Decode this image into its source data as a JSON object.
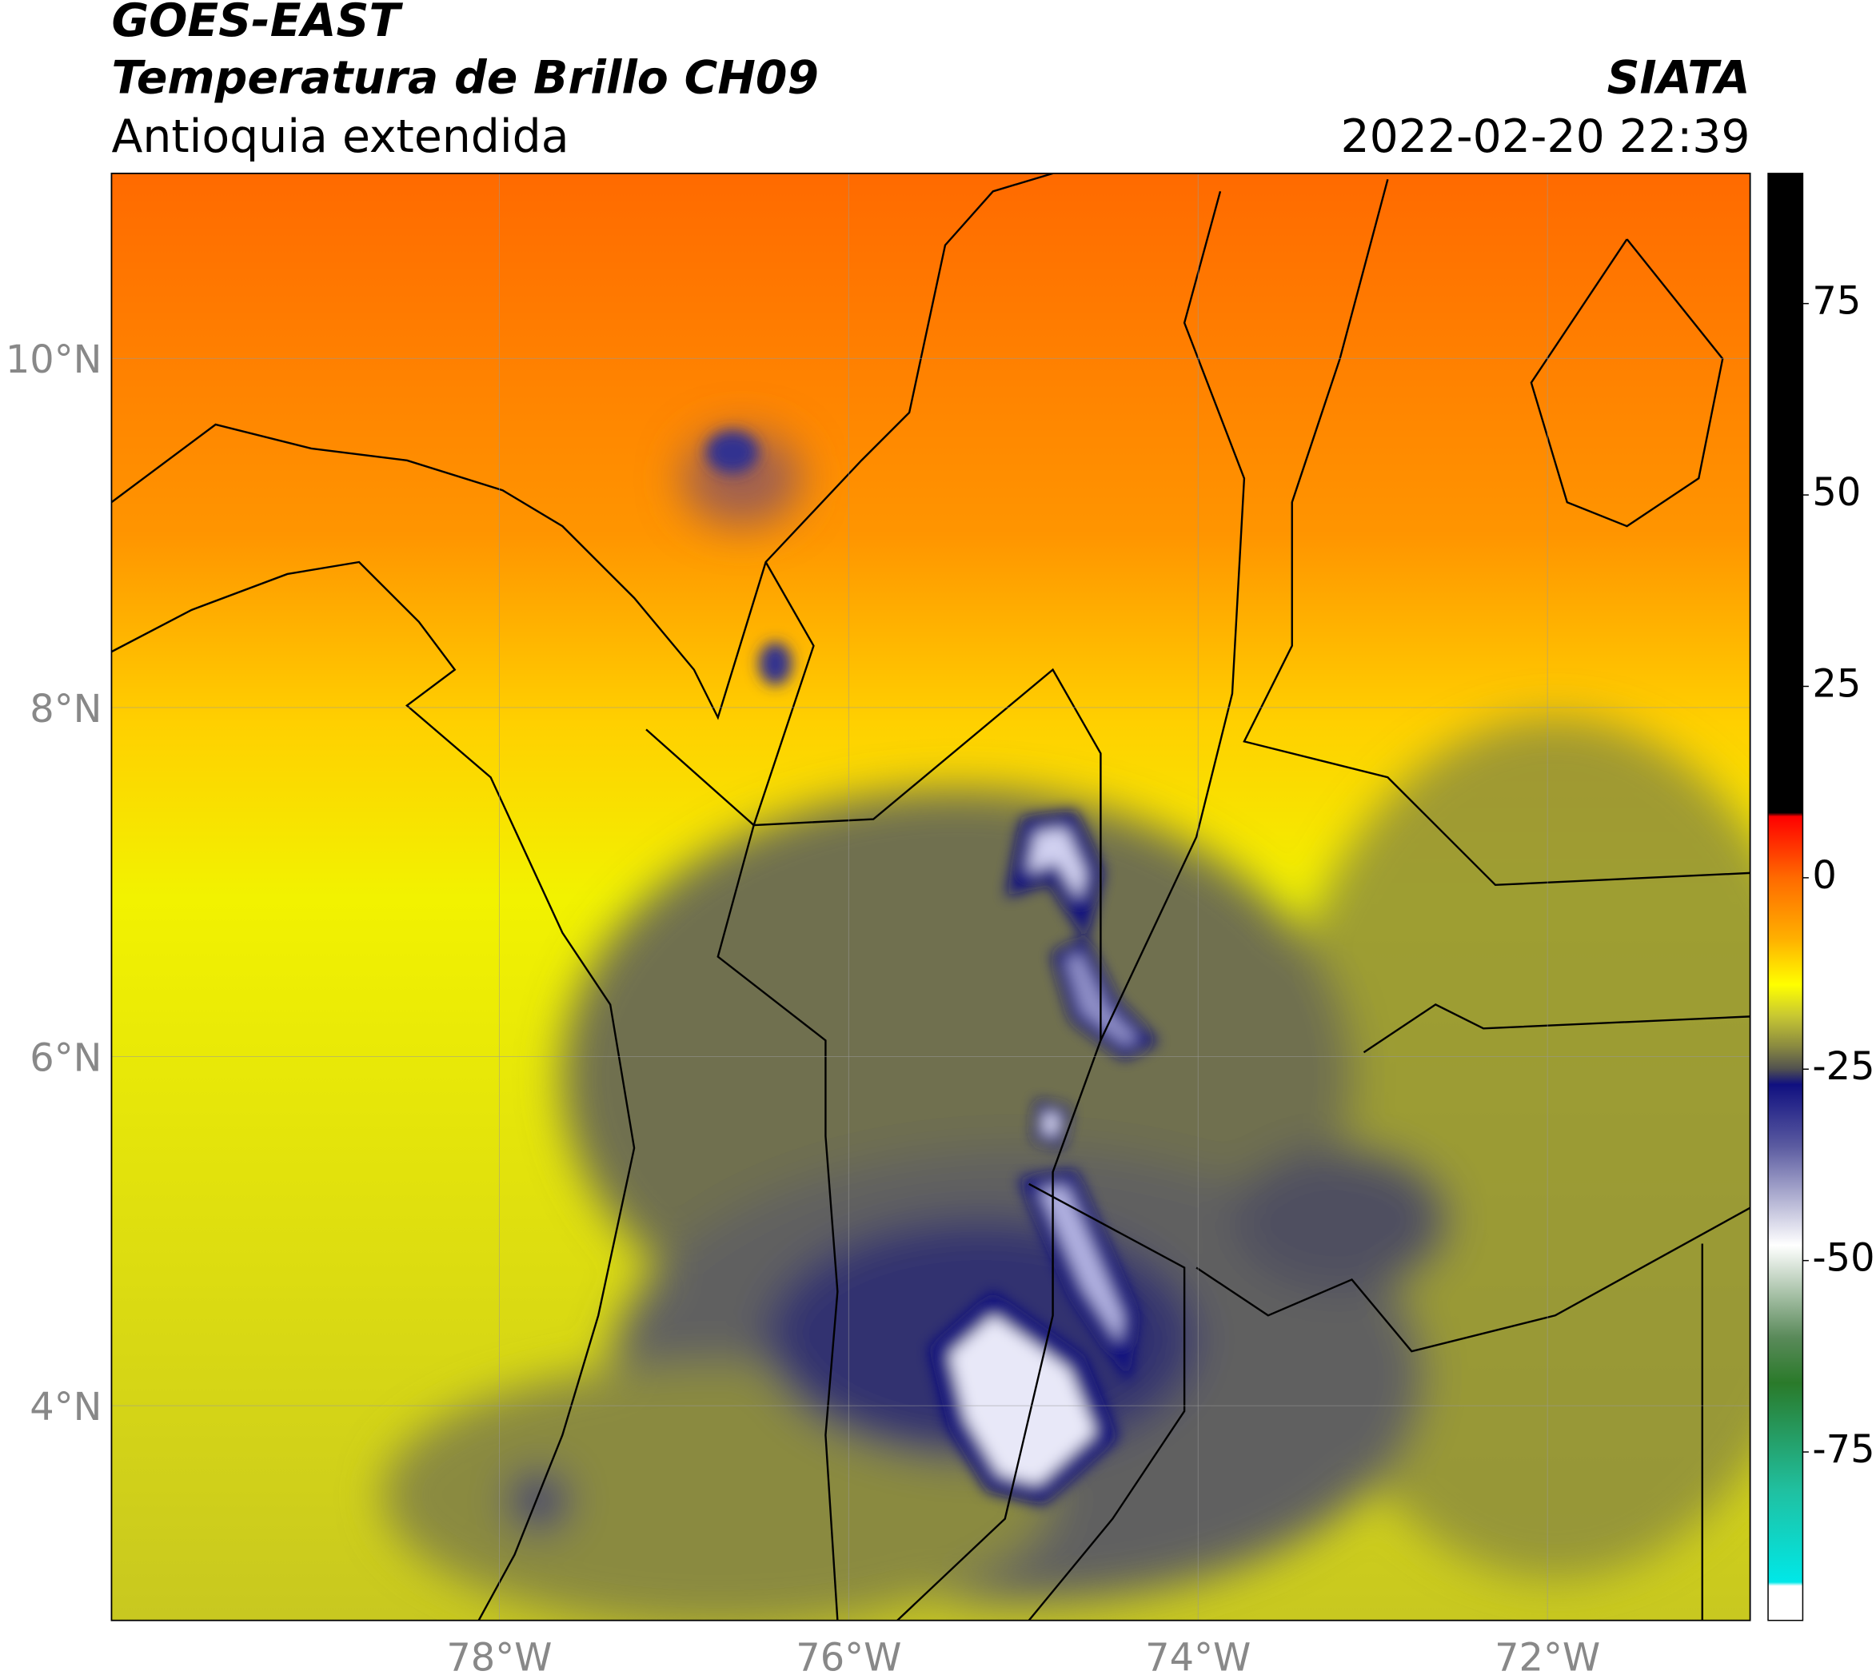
{
  "header": {
    "title": "GOES-EAST",
    "subtitle": "Temperatura de Brillo CH09",
    "region": "Antioquia extendida",
    "source": "SIATA",
    "datetime": "2022-02-20 22:39"
  },
  "map": {
    "xlim": [
      -80.22,
      -70.84
    ],
    "ylim": [
      2.77,
      11.06
    ],
    "xticks": [
      {
        "value": -78,
        "label": "78°W"
      },
      {
        "value": -76,
        "label": "76°W"
      },
      {
        "value": -74,
        "label": "74°W"
      },
      {
        "value": -72,
        "label": "72°W"
      }
    ],
    "yticks": [
      {
        "value": 10,
        "label": "10°N"
      },
      {
        "value": 8,
        "label": "8°N"
      },
      {
        "value": 6,
        "label": "6°N"
      },
      {
        "value": 4,
        "label": "4°N"
      }
    ],
    "grid": true
  },
  "colorbar": {
    "lim": [
      -97,
      92
    ],
    "ticks": [
      75,
      50,
      25,
      0,
      -25,
      -50,
      -75
    ],
    "stops": [
      {
        "value": 92,
        "color": "#000000"
      },
      {
        "value": 8.5,
        "color": "#000000"
      },
      {
        "value": 8,
        "color": "#ff0000"
      },
      {
        "value": 0,
        "color": "#ff6a00"
      },
      {
        "value": -8,
        "color": "#ffb000"
      },
      {
        "value": -14,
        "color": "#ffff00"
      },
      {
        "value": -18,
        "color": "#c8c832"
      },
      {
        "value": -22,
        "color": "#8a8a40"
      },
      {
        "value": -25,
        "color": "#505050"
      },
      {
        "value": -27,
        "color": "#101080"
      },
      {
        "value": -35,
        "color": "#5a5aa0"
      },
      {
        "value": -48,
        "color": "#ffffff"
      },
      {
        "value": -60,
        "color": "#5a8a5a"
      },
      {
        "value": -66,
        "color": "#2a7a2a"
      },
      {
        "value": -80,
        "color": "#20c0a0"
      },
      {
        "value": -92,
        "color": "#00e8e8"
      },
      {
        "value": -92.5,
        "color": "#ffffff"
      },
      {
        "value": -97,
        "color": "#ffffff"
      }
    ]
  }
}
